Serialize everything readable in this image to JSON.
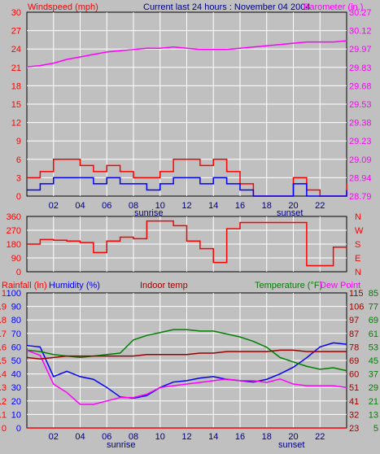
{
  "colors": {
    "background": "#c0c0c0",
    "grid": "#ffffff",
    "windspeed": "#ff0000",
    "gust": "#ff0000",
    "avg_wind": "#0000ff",
    "barometer": "#ff00ff",
    "direction": "#ff0000",
    "rainfall": "#ff0000",
    "humidity": "#0000ff",
    "indoor_temp": "#990000",
    "temperature": "#008000",
    "dew_point": "#ff00ff",
    "sunrise_sunset": "#000080"
  },
  "chart_data": [
    {
      "type": "line",
      "title": "Current last 24 hours : November 04 2004",
      "ylabel": "Windspeed (mph)",
      "y2label": "Barometer (in.)",
      "x": [
        0,
        1,
        2,
        3,
        4,
        5,
        6,
        7,
        8,
        9,
        10,
        11,
        12,
        13,
        14,
        15,
        16,
        17,
        18,
        19,
        20,
        21,
        22,
        23,
        24
      ],
      "xlim": [
        0,
        24
      ],
      "x_tick_labels": [
        "02",
        "04",
        "06",
        "08",
        "10",
        "12",
        "14",
        "16",
        "18",
        "20",
        "22"
      ],
      "x_markers": {
        "sunrise": "sunrise",
        "sunset": "sunset"
      },
      "ylim": [
        0,
        30
      ],
      "y_ticks": [
        "0",
        "3",
        "6",
        "9",
        "12",
        "15",
        "18",
        "21",
        "24",
        "27",
        "30"
      ],
      "y2lim": [
        28.79,
        30.27
      ],
      "y2_ticks": [
        "28.79",
        "28.94",
        "29.09",
        "29.23",
        "29.38",
        "29.53",
        "29.68",
        "29.83",
        "29.97",
        "30.12",
        "30.27"
      ],
      "grid": true,
      "series": [
        {
          "name": "Windspeed (mph)",
          "axis": "left",
          "values": [
            3,
            4,
            6,
            6,
            5,
            4,
            5,
            4,
            3,
            3,
            4,
            6,
            6,
            5,
            6,
            4,
            2,
            0,
            0,
            0,
            3,
            1,
            0,
            0,
            2
          ]
        },
        {
          "name": "",
          "axis": "left",
          "values": [
            1,
            2,
            3,
            3,
            3,
            2,
            3,
            2,
            2,
            1,
            2,
            3,
            3,
            2,
            3,
            2,
            1,
            0,
            0,
            0,
            2,
            0,
            0,
            0,
            1
          ]
        },
        {
          "name": "Barometer (in.)",
          "axis": "right",
          "values": [
            29.83,
            29.84,
            29.86,
            29.89,
            29.91,
            29.93,
            29.95,
            29.96,
            29.97,
            29.98,
            29.98,
            29.99,
            29.98,
            29.97,
            29.97,
            29.97,
            29.98,
            29.99,
            30.0,
            30.01,
            30.02,
            30.03,
            30.03,
            30.03,
            30.04
          ]
        }
      ]
    },
    {
      "type": "line",
      "ylabel": "",
      "ylim": [
        0,
        360
      ],
      "y_ticks": [
        "0",
        "90",
        "180",
        "270",
        "360"
      ],
      "y2_ticks": [
        "N",
        "E",
        "S",
        "W",
        "N"
      ],
      "x": [
        0,
        1,
        2,
        3,
        4,
        5,
        6,
        7,
        8,
        9,
        10,
        11,
        12,
        13,
        14,
        15,
        16,
        17,
        18,
        19,
        20,
        21,
        22,
        23,
        24
      ],
      "xlim": [
        0,
        24
      ],
      "grid": true,
      "series": [
        {
          "name": "",
          "values": [
            180,
            210,
            205,
            200,
            190,
            125,
            200,
            225,
            215,
            330,
            330,
            300,
            200,
            150,
            60,
            280,
            320,
            320,
            320,
            320,
            320,
            40,
            40,
            160,
            165
          ]
        }
      ]
    },
    {
      "type": "line",
      "x": [
        0,
        1,
        2,
        3,
        4,
        5,
        6,
        7,
        8,
        9,
        10,
        11,
        12,
        13,
        14,
        15,
        16,
        17,
        18,
        19,
        20,
        21,
        22,
        23,
        24
      ],
      "xlim": [
        0,
        24
      ],
      "x_tick_labels": [
        "02",
        "04",
        "06",
        "08",
        "10",
        "12",
        "14",
        "16",
        "18",
        "20",
        "22"
      ],
      "x_markers": {
        "sunrise": "sunrise",
        "sunset": "sunset"
      },
      "grid": true,
      "axes": {
        "rainfall": {
          "label": "Rainfall (in)",
          "ticks": [
            "0",
            "0.1",
            "0.2",
            "0.3",
            "0.4",
            "0.5",
            "0.6",
            "0.7",
            "0.8",
            "0.9",
            "1"
          ]
        },
        "humidity": {
          "label": "Humidity (%)",
          "ticks": [
            "0",
            "10",
            "20",
            "30",
            "40",
            "50",
            "60",
            "70",
            "80",
            "90",
            "100"
          ]
        },
        "indoor": {
          "label": "Indoor temp"
        },
        "temperature": {
          "label": "Temperature (°F)",
          "ticks": [
            "23",
            "32",
            "41",
            "51",
            "60",
            "69",
            "78",
            "87",
            "97",
            "106",
            "115"
          ]
        },
        "dew_point": {
          "label": "Dew Point",
          "ticks": [
            "5",
            "13",
            "21",
            "29",
            "37",
            "45",
            "53",
            "61",
            "69",
            "77",
            "85"
          ]
        }
      },
      "series": [
        {
          "name": "Humidity (%)",
          "axis": "humidity",
          "values": [
            61,
            60,
            38,
            42,
            38,
            36,
            30,
            23,
            22,
            24,
            30,
            34,
            35,
            37,
            38,
            36,
            35,
            34,
            36,
            40,
            45,
            52,
            60,
            63,
            62
          ]
        },
        {
          "name": "Temperature (°F)",
          "axis": "temperature",
          "values": [
            76,
            75,
            73,
            72,
            71,
            72,
            73,
            74,
            83,
            86,
            88,
            90,
            90,
            89,
            89,
            87,
            85,
            82,
            78,
            71,
            68,
            65,
            63,
            64,
            62
          ]
        },
        {
          "name": "Dew Point",
          "axis": "dew_point",
          "values": [
            51,
            48,
            31,
            26,
            19,
            19,
            21,
            23,
            23,
            25,
            29,
            30,
            31,
            32,
            33,
            34,
            33,
            33,
            32,
            34,
            31,
            30,
            30,
            30,
            29
          ]
        },
        {
          "name": "Indoor temp",
          "axis": "temperature",
          "values": [
            71,
            70,
            71,
            72,
            72,
            72,
            72,
            72,
            72,
            73,
            73,
            73,
            73,
            74,
            74,
            75,
            75,
            75,
            75,
            76,
            76,
            75,
            75,
            75,
            75
          ]
        },
        {
          "name": "Rainfall (in)",
          "axis": "rainfall",
          "values": [
            0,
            0,
            0,
            0,
            0,
            0,
            0,
            0,
            0,
            0,
            0,
            0,
            0,
            0,
            0,
            0,
            0,
            0,
            0,
            0,
            0,
            0,
            0,
            0,
            0
          ]
        }
      ]
    }
  ]
}
